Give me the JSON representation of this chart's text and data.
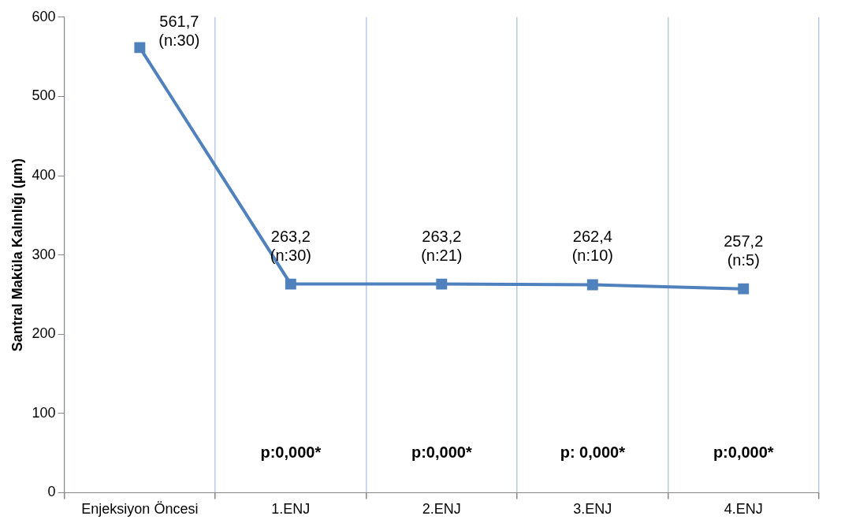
{
  "chart_data": {
    "type": "line",
    "ylabel": "Santral Maküla Kalınlığı (µm)",
    "categories": [
      "Enjeksiyon Öncesi",
      "1.ENJ",
      "2.ENJ",
      "3.ENJ",
      "4.ENJ"
    ],
    "values": [
      561.7,
      263.2,
      263.2,
      262.4,
      257.2
    ],
    "value_labels": [
      "561,7\n(n:30)",
      "263,2\n(n:30)",
      "263,2\n(n:21)",
      "262,4\n(n:10)",
      "257,2\n(n:5)"
    ],
    "color": "#4f81bd",
    "marker": "square",
    "line_style": "solid",
    "ylim": [
      0,
      600
    ],
    "yticks": [
      0,
      100,
      200,
      300,
      400,
      500,
      600
    ],
    "grid": "x",
    "legend": false,
    "annotations": [
      "p:0,000*",
      "p:0,000*",
      "p: 0,000*",
      "p:0,000*"
    ]
  }
}
